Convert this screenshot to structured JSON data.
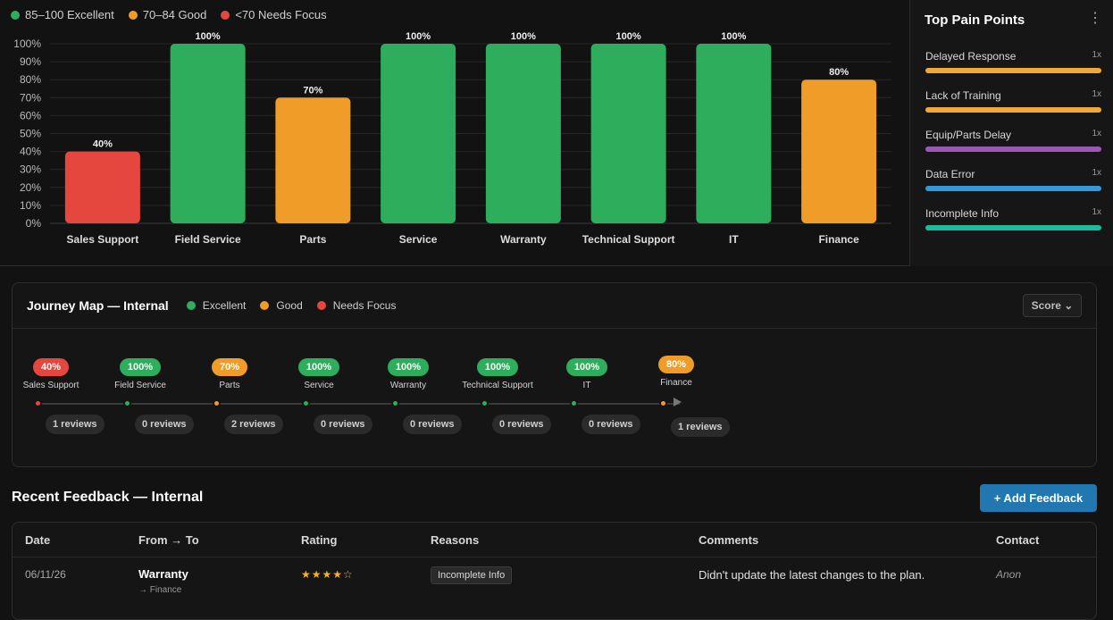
{
  "legend": [
    {
      "label": "85–100 Excellent",
      "color": "#2ead5c"
    },
    {
      "label": "70–84 Good",
      "color": "#f09c28"
    },
    {
      "label": "<70 Needs Focus",
      "color": "#e5473f"
    }
  ],
  "chart_data": {
    "type": "bar",
    "categories": [
      "Sales Support",
      "Field Service",
      "Parts",
      "Service",
      "Warranty",
      "Technical Support",
      "IT",
      "Finance"
    ],
    "values": [
      40,
      100,
      70,
      100,
      100,
      100,
      100,
      80
    ],
    "value_labels": [
      "40%",
      "100%",
      "70%",
      "100%",
      "100%",
      "100%",
      "100%",
      "80%"
    ],
    "colors": [
      "#e5473f",
      "#2ead5c",
      "#f09c28",
      "#2ead5c",
      "#2ead5c",
      "#2ead5c",
      "#2ead5c",
      "#f09c28"
    ],
    "yticks": [
      "0%",
      "10%",
      "20%",
      "30%",
      "40%",
      "50%",
      "60%",
      "70%",
      "80%",
      "90%",
      "100%"
    ],
    "ylim": [
      0,
      100
    ],
    "grid": true,
    "legend_position": "top-left"
  },
  "pain_points": {
    "title": "Top Pain Points",
    "more_icon": "⋮",
    "items": [
      {
        "label": "Delayed Response",
        "count": "1x",
        "color": "#f0a83a"
      },
      {
        "label": "Lack of Training",
        "count": "1x",
        "color": "#f0a83a"
      },
      {
        "label": "Equip/Parts Delay",
        "count": "1x",
        "color": "#9b59b6"
      },
      {
        "label": "Data Error",
        "count": "1x",
        "color": "#3498db"
      },
      {
        "label": "Incomplete Info",
        "count": "1x",
        "color": "#1abc9c"
      }
    ]
  },
  "journey": {
    "title": "Journey Map — Internal",
    "legend": [
      {
        "label": "Excellent",
        "color": "#2ead5c"
      },
      {
        "label": "Good",
        "color": "#f09c28"
      },
      {
        "label": "Needs Focus",
        "color": "#e5473f"
      }
    ],
    "score_button": "Score ⌄",
    "stages": [
      {
        "name": "Sales Support",
        "score": "40%",
        "color": "#e5473f",
        "reviews": "1 reviews"
      },
      {
        "name": "Field Service",
        "score": "100%",
        "color": "#2ead5c",
        "reviews": "0 reviews"
      },
      {
        "name": "Parts",
        "score": "70%",
        "color": "#f09c28",
        "reviews": "2 reviews"
      },
      {
        "name": "Service",
        "score": "100%",
        "color": "#2ead5c",
        "reviews": "0 reviews"
      },
      {
        "name": "Warranty",
        "score": "100%",
        "color": "#2ead5c",
        "reviews": "0 reviews"
      },
      {
        "name": "Technical Support",
        "score": "100%",
        "color": "#2ead5c",
        "reviews": "0 reviews"
      },
      {
        "name": "IT",
        "score": "100%",
        "color": "#2ead5c",
        "reviews": "0 reviews"
      },
      {
        "name": "Finance",
        "score": "80%",
        "color": "#f09c28",
        "reviews": "1 reviews"
      }
    ]
  },
  "feedback": {
    "title": "Recent Feedback — Internal",
    "add_button": "+ Add Feedback",
    "columns": [
      "Date",
      "From → To",
      "Rating",
      "Reasons",
      "Comments",
      "Contact"
    ],
    "rows": [
      {
        "date": "06/11/26",
        "from": "Warranty",
        "to": "→ Finance",
        "rating": "★★★★☆",
        "reason": "Incomplete Info",
        "comment": "Didn't update the latest changes to the plan.",
        "contact": "Anon"
      }
    ]
  }
}
